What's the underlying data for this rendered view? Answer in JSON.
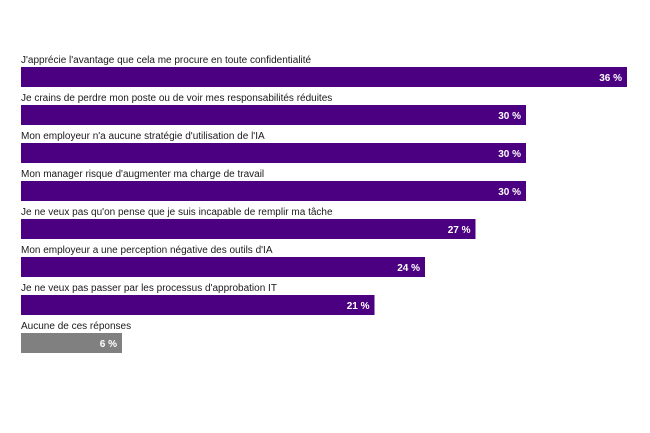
{
  "chart_data": {
    "type": "bar",
    "orientation": "horizontal",
    "categories": [
      "J'apprécie l'avantage que cela me procure en toute confidentialité",
      "Je crains de perdre mon poste ou de voir mes responsabilités réduites",
      "Mon employeur n'a aucune stratégie d'utilisation de l'IA",
      "Mon manager risque d'augmenter ma charge de travail",
      "Je ne veux pas qu'on pense que je suis incapable de remplir ma tâche",
      "Mon employeur a une perception négative des outils d'IA",
      "Je ne veux pas passer par les processus d'approbation IT",
      "Aucune de ces réponses"
    ],
    "values": [
      36,
      30,
      30,
      30,
      27,
      24,
      21,
      6
    ],
    "value_labels": [
      "36 %",
      "30 %",
      "30 %",
      "30 %",
      "27 %",
      "24 %",
      "21 %",
      "6 %"
    ],
    "bar_colors": [
      "#4b0082",
      "#4b0082",
      "#4b0082",
      "#4b0082",
      "#4b0082",
      "#4b0082",
      "#4b0082",
      "#808080"
    ],
    "xlim": [
      0,
      36
    ],
    "grid": false,
    "legend": "none"
  }
}
